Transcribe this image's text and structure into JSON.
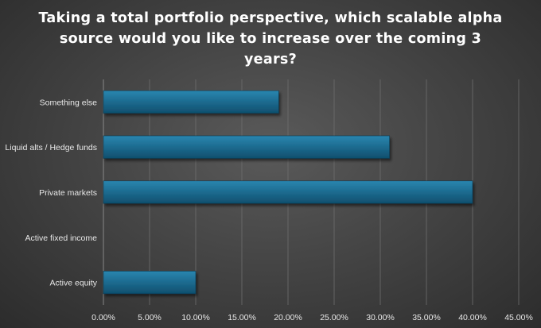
{
  "chart_data": {
    "type": "bar",
    "orientation": "horizontal",
    "title": "Taking a total portfolio perspective, which scalable alpha source would you like to increase over the coming 3 years?",
    "categories": [
      "Something else",
      "Liquid alts / Hedge funds",
      "Private markets",
      "Active fixed income",
      "Active equity"
    ],
    "values": [
      19,
      31,
      40,
      0,
      10
    ],
    "xlim": [
      0,
      45
    ],
    "x_ticks": [
      0,
      5,
      10,
      15,
      20,
      25,
      30,
      35,
      40,
      45
    ],
    "x_tick_labels": [
      "0.00%",
      "5.00%",
      "10.00%",
      "15.00%",
      "20.00%",
      "25.00%",
      "30.00%",
      "35.00%",
      "40.00%",
      "45.00%"
    ],
    "grid": "vertical",
    "bar_color": "#1a6a90",
    "legend": "none"
  }
}
